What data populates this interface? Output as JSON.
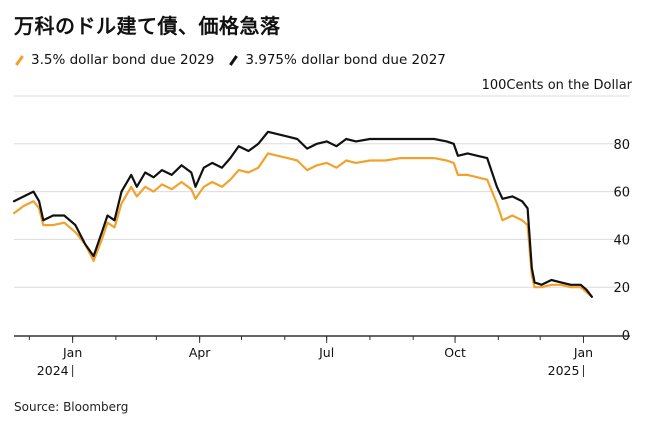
{
  "title": "万科のドル建て債、価格急落",
  "source": "Source: Bloomberg",
  "units_label": "100Cents on the Dollar",
  "colors": {
    "series_2029": "#f2a22c",
    "series_2027": "#111111",
    "grid": "#dcdcdc",
    "axis": "#333333"
  },
  "chart_data": {
    "type": "line",
    "title": "万科のドル建て債、価格急落",
    "xlabel": "",
    "ylabel": "Cents on the Dollar",
    "ylim": [
      0,
      100
    ],
    "y_ticks": [
      0,
      20,
      40,
      60,
      80
    ],
    "y_tick_labels": [
      "0",
      "20",
      "40",
      "60",
      "80"
    ],
    "x_ticks": [
      "2024-01-01",
      "2024-04-01",
      "2024-07-01",
      "2024-10-01",
      "2025-01-01"
    ],
    "x_tick_labels": [
      "Jan",
      "Apr",
      "Jul",
      "Oct",
      "Jan"
    ],
    "year_labels": [
      {
        "date": "2024-01-01",
        "label": "2024"
      },
      {
        "date": "2025-01-01",
        "label": "2025"
      }
    ],
    "xlim": [
      "2023-11-20",
      "2025-01-20"
    ],
    "grid": true,
    "legend_position": "top-left",
    "series": [
      {
        "name": "3.5% dollar bond due 2029",
        "color": "#f2a22c",
        "points": [
          [
            "2023-11-20",
            51
          ],
          [
            "2023-11-27",
            54
          ],
          [
            "2023-12-04",
            56
          ],
          [
            "2023-12-08",
            53
          ],
          [
            "2023-12-11",
            46
          ],
          [
            "2023-12-18",
            46
          ],
          [
            "2023-12-26",
            47
          ],
          [
            "2024-01-03",
            43
          ],
          [
            "2024-01-10",
            38
          ],
          [
            "2024-01-16",
            31
          ],
          [
            "2024-01-22",
            40
          ],
          [
            "2024-01-26",
            47
          ],
          [
            "2024-01-31",
            45
          ],
          [
            "2024-02-05",
            55
          ],
          [
            "2024-02-12",
            62
          ],
          [
            "2024-02-16",
            58
          ],
          [
            "2024-02-22",
            62
          ],
          [
            "2024-02-28",
            60
          ],
          [
            "2024-03-05",
            63
          ],
          [
            "2024-03-12",
            61
          ],
          [
            "2024-03-19",
            64
          ],
          [
            "2024-03-26",
            61
          ],
          [
            "2024-03-29",
            57
          ],
          [
            "2024-04-04",
            62
          ],
          [
            "2024-04-10",
            64
          ],
          [
            "2024-04-17",
            62
          ],
          [
            "2024-04-23",
            65
          ],
          [
            "2024-04-29",
            69
          ],
          [
            "2024-05-06",
            68
          ],
          [
            "2024-05-13",
            70
          ],
          [
            "2024-05-20",
            76
          ],
          [
            "2024-05-27",
            75
          ],
          [
            "2024-06-03",
            74
          ],
          [
            "2024-06-10",
            73
          ],
          [
            "2024-06-17",
            69
          ],
          [
            "2024-06-24",
            71
          ],
          [
            "2024-07-01",
            72
          ],
          [
            "2024-07-08",
            70
          ],
          [
            "2024-07-15",
            73
          ],
          [
            "2024-07-22",
            72
          ],
          [
            "2024-08-01",
            73
          ],
          [
            "2024-08-12",
            73
          ],
          [
            "2024-08-23",
            74
          ],
          [
            "2024-09-03",
            74
          ],
          [
            "2024-09-16",
            74
          ],
          [
            "2024-09-25",
            73
          ],
          [
            "2024-09-30",
            72
          ],
          [
            "2024-10-03",
            67
          ],
          [
            "2024-10-10",
            67
          ],
          [
            "2024-10-17",
            66
          ],
          [
            "2024-10-24",
            65
          ],
          [
            "2024-10-31",
            55
          ],
          [
            "2024-11-04",
            48
          ],
          [
            "2024-11-11",
            50
          ],
          [
            "2024-11-18",
            48
          ],
          [
            "2024-11-22",
            46
          ],
          [
            "2024-11-25",
            25
          ],
          [
            "2024-11-27",
            20
          ],
          [
            "2024-12-02",
            20
          ],
          [
            "2024-12-09",
            21
          ],
          [
            "2024-12-16",
            21
          ],
          [
            "2024-12-23",
            20
          ],
          [
            "2024-12-30",
            20
          ],
          [
            "2025-01-03",
            18
          ],
          [
            "2025-01-07",
            16
          ]
        ]
      },
      {
        "name": "3.975% dollar bond due 2027",
        "color": "#111111",
        "points": [
          [
            "2023-11-20",
            56
          ],
          [
            "2023-11-27",
            58
          ],
          [
            "2023-12-04",
            60
          ],
          [
            "2023-12-08",
            56
          ],
          [
            "2023-12-11",
            48
          ],
          [
            "2023-12-18",
            50
          ],
          [
            "2023-12-26",
            50
          ],
          [
            "2024-01-03",
            46
          ],
          [
            "2024-01-10",
            38
          ],
          [
            "2024-01-16",
            33
          ],
          [
            "2024-01-22",
            43
          ],
          [
            "2024-01-26",
            50
          ],
          [
            "2024-01-31",
            48
          ],
          [
            "2024-02-05",
            60
          ],
          [
            "2024-02-12",
            67
          ],
          [
            "2024-02-16",
            62
          ],
          [
            "2024-02-22",
            68
          ],
          [
            "2024-02-28",
            66
          ],
          [
            "2024-03-05",
            69
          ],
          [
            "2024-03-12",
            67
          ],
          [
            "2024-03-19",
            71
          ],
          [
            "2024-03-26",
            68
          ],
          [
            "2024-03-29",
            62
          ],
          [
            "2024-04-04",
            70
          ],
          [
            "2024-04-10",
            72
          ],
          [
            "2024-04-17",
            70
          ],
          [
            "2024-04-23",
            74
          ],
          [
            "2024-04-29",
            79
          ],
          [
            "2024-05-06",
            77
          ],
          [
            "2024-05-13",
            80
          ],
          [
            "2024-05-20",
            85
          ],
          [
            "2024-05-27",
            84
          ],
          [
            "2024-06-03",
            83
          ],
          [
            "2024-06-10",
            82
          ],
          [
            "2024-06-17",
            78
          ],
          [
            "2024-06-24",
            80
          ],
          [
            "2024-07-01",
            81
          ],
          [
            "2024-07-08",
            79
          ],
          [
            "2024-07-15",
            82
          ],
          [
            "2024-07-22",
            81
          ],
          [
            "2024-08-01",
            82
          ],
          [
            "2024-08-12",
            82
          ],
          [
            "2024-08-23",
            82
          ],
          [
            "2024-09-03",
            82
          ],
          [
            "2024-09-16",
            82
          ],
          [
            "2024-09-25",
            81
          ],
          [
            "2024-09-30",
            80
          ],
          [
            "2024-10-03",
            75
          ],
          [
            "2024-10-10",
            76
          ],
          [
            "2024-10-17",
            75
          ],
          [
            "2024-10-24",
            74
          ],
          [
            "2024-10-31",
            62
          ],
          [
            "2024-11-04",
            57
          ],
          [
            "2024-11-11",
            58
          ],
          [
            "2024-11-18",
            56
          ],
          [
            "2024-11-22",
            53
          ],
          [
            "2024-11-25",
            28
          ],
          [
            "2024-11-27",
            22
          ],
          [
            "2024-12-02",
            21
          ],
          [
            "2024-12-09",
            23
          ],
          [
            "2024-12-16",
            22
          ],
          [
            "2024-12-23",
            21
          ],
          [
            "2024-12-30",
            21
          ],
          [
            "2025-01-03",
            19
          ],
          [
            "2025-01-07",
            16
          ]
        ]
      }
    ]
  }
}
